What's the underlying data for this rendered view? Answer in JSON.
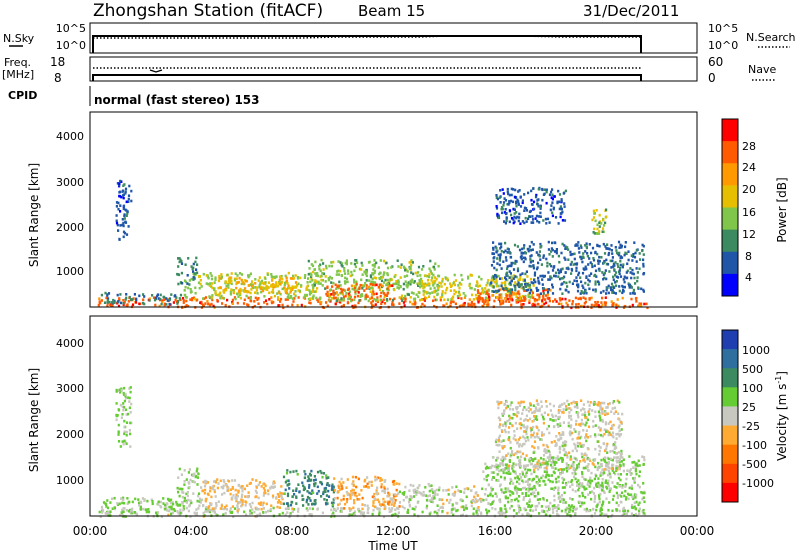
{
  "header": {
    "station": "Zhongshan Station (fitACF)",
    "beam": "Beam 15",
    "date": "31/Dec/2011"
  },
  "strip": {
    "nsky_label": "N.Sky",
    "nsky_ticks": [
      "10^5",
      "10^0"
    ],
    "nsearch_label": "N.Search",
    "nsearch_ticks": [
      "10^5",
      "10^0"
    ],
    "freq_label_1": "Freq.",
    "freq_label_2": "[MHz]",
    "freq_ticks": [
      "18",
      "8"
    ],
    "nave_label": "Nave",
    "nave_ticks": [
      "60",
      "0"
    ],
    "cpid_label": "CPID",
    "cpid_value": "normal (fast stereo) 153"
  },
  "axes": {
    "xlabel": "Time UT",
    "x_ticks": [
      "00:00",
      "04:00",
      "08:00",
      "12:00",
      "16:00",
      "20:00",
      "00:00"
    ],
    "ylabel": "Slant Range [km]",
    "y_ticks": [
      "4000",
      "3000",
      "2000",
      "1000"
    ]
  },
  "colorbars": {
    "power": {
      "label": "Power [dB]",
      "ticks": [
        "28",
        "24",
        "20",
        "16",
        "12",
        "8",
        "4"
      ],
      "colors": [
        "#ff0000",
        "#ff5a00",
        "#ff9900",
        "#e6c000",
        "#7fc64a",
        "#3c8a60",
        "#1f56a8",
        "#0000ff"
      ]
    },
    "velocity": {
      "label": "Velocity [m s",
      "label_sup": "-1",
      "label_end": "]",
      "ticks": [
        "1000",
        "500",
        "100",
        "25",
        "-25",
        "-100",
        "-500",
        "-1000"
      ],
      "colors": [
        "#1f3fb0",
        "#2f6fa0",
        "#3c8a60",
        "#66cc33",
        "#c8c8c0",
        "#ffaa33",
        "#ff7700",
        "#ff4400",
        "#ff0000"
      ]
    }
  },
  "chart_data": {
    "type": "heatmap",
    "title": "Zhongshan Station (fitACF)",
    "xlabel": "Time UT",
    "ylabel": "Slant Range [km]",
    "xlim": [
      0,
      24
    ],
    "ylim": [
      180,
      4500
    ],
    "panels": [
      {
        "name": "Power",
        "units": "dB",
        "colorbar_range": [
          0,
          32
        ],
        "regions": [
          {
            "t0": 0.3,
            "t1": 22.0,
            "r0": 190,
            "r1": 420,
            "level": 26
          },
          {
            "t0": 0.4,
            "t1": 3.6,
            "r0": 260,
            "r1": 520,
            "level": 9
          },
          {
            "t0": 3.7,
            "t1": 9.0,
            "r0": 380,
            "r1": 960,
            "level": 15
          },
          {
            "t0": 5.0,
            "t1": 8.3,
            "r0": 520,
            "r1": 860,
            "level": 20
          },
          {
            "t0": 8.6,
            "t1": 13.8,
            "r0": 340,
            "r1": 1250,
            "level": 14
          },
          {
            "t0": 9.3,
            "t1": 12.0,
            "r0": 420,
            "r1": 720,
            "level": 26
          },
          {
            "t0": 13.0,
            "t1": 17.6,
            "r0": 360,
            "r1": 920,
            "level": 17
          },
          {
            "t0": 15.2,
            "t1": 18.2,
            "r0": 300,
            "r1": 600,
            "level": 26
          },
          {
            "t0": 15.8,
            "t1": 21.9,
            "r0": 500,
            "r1": 1650,
            "level": 7
          },
          {
            "t0": 16.0,
            "t1": 18.8,
            "r0": 2050,
            "r1": 2850,
            "level": 6
          },
          {
            "t0": 19.8,
            "t1": 20.4,
            "r0": 1800,
            "r1": 2400,
            "level": 14
          },
          {
            "t0": 1.0,
            "t1": 1.6,
            "r0": 1700,
            "r1": 3000,
            "level": 6
          },
          {
            "t0": 3.4,
            "t1": 4.2,
            "r0": 700,
            "r1": 1300,
            "level": 9
          }
        ]
      },
      {
        "name": "Velocity",
        "units": "m s-1",
        "colorbar_range": [
          -1000,
          1000
        ],
        "regions": [
          {
            "t0": 0.3,
            "t1": 22.0,
            "r0": 190,
            "r1": 380,
            "level": 60
          },
          {
            "t0": 0.4,
            "t1": 3.6,
            "r0": 260,
            "r1": 600,
            "level": 150
          },
          {
            "t0": 3.4,
            "t1": 4.3,
            "r0": 400,
            "r1": 1250,
            "level": 120
          },
          {
            "t0": 4.3,
            "t1": 7.6,
            "r0": 350,
            "r1": 1000,
            "level": -120
          },
          {
            "t0": 7.6,
            "t1": 9.6,
            "r0": 420,
            "r1": 1200,
            "level": 500
          },
          {
            "t0": 9.6,
            "t1": 12.2,
            "r0": 360,
            "r1": 1050,
            "level": -200
          },
          {
            "t0": 12.2,
            "t1": 13.8,
            "r0": 400,
            "r1": 900,
            "level": 60
          },
          {
            "t0": 13.8,
            "t1": 15.5,
            "r0": 380,
            "r1": 850,
            "level": 0
          },
          {
            "t0": 15.5,
            "t1": 21.9,
            "r0": 300,
            "r1": 1500,
            "level": 150
          },
          {
            "t0": 16.0,
            "t1": 21.0,
            "r0": 1200,
            "r1": 2700,
            "level": 0
          },
          {
            "t0": 1.0,
            "t1": 1.6,
            "r0": 1700,
            "r1": 3000,
            "level": 150
          }
        ]
      }
    ]
  }
}
